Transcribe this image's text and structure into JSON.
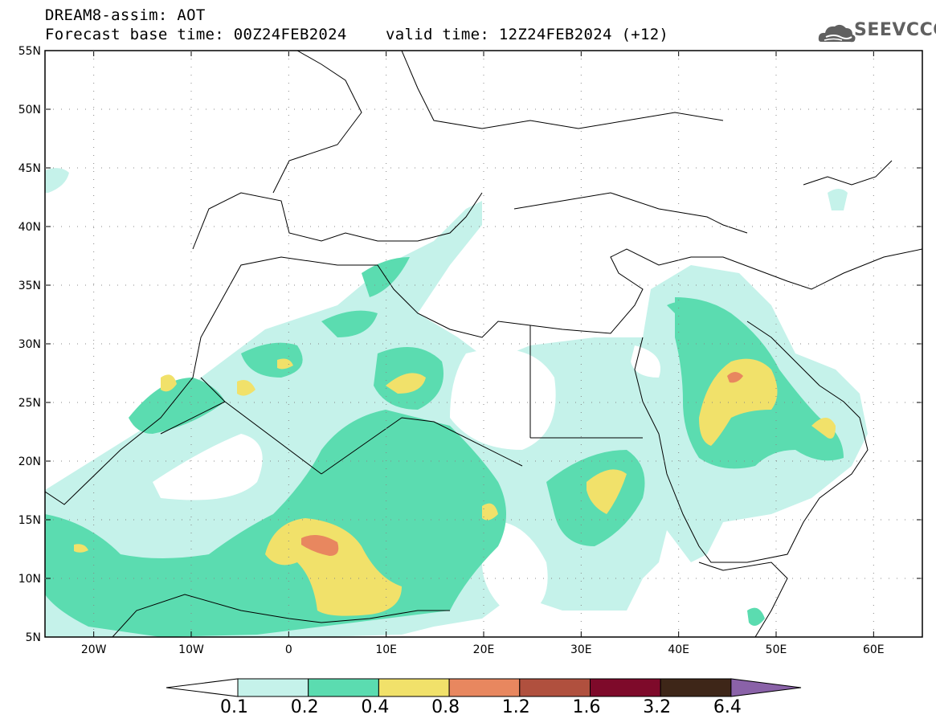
{
  "header": {
    "line1": "DREAM8-assim: AOT",
    "line2": "Forecast base time: 00Z24FEB2024",
    "line2b": "valid time: 12Z24FEB2024 (+12)"
  },
  "logo": {
    "text": "SEEVCCC",
    "icon": "cloud-icon"
  },
  "map": {
    "lat_labels": [
      "55N",
      "50N",
      "45N",
      "40N",
      "35N",
      "30N",
      "25N",
      "20N",
      "15N",
      "10N",
      "5N"
    ],
    "lon_labels": [
      "20W",
      "10W",
      "0",
      "10E",
      "20E",
      "30E",
      "40E",
      "50E",
      "60E"
    ],
    "lon_range": [
      -25,
      65
    ],
    "lat_range": [
      5,
      55
    ]
  },
  "colorbar": {
    "labels": [
      "0.1",
      "0.2",
      "0.4",
      "0.8",
      "1.2",
      "1.6",
      "3.2",
      "6.4"
    ],
    "colors": [
      "#ffffff",
      "#c5f2ea",
      "#5bdcb0",
      "#f1e16a",
      "#e8875f",
      "#b0503e",
      "#7e0a2a",
      "#3e2618",
      "#8a62a8"
    ]
  }
}
